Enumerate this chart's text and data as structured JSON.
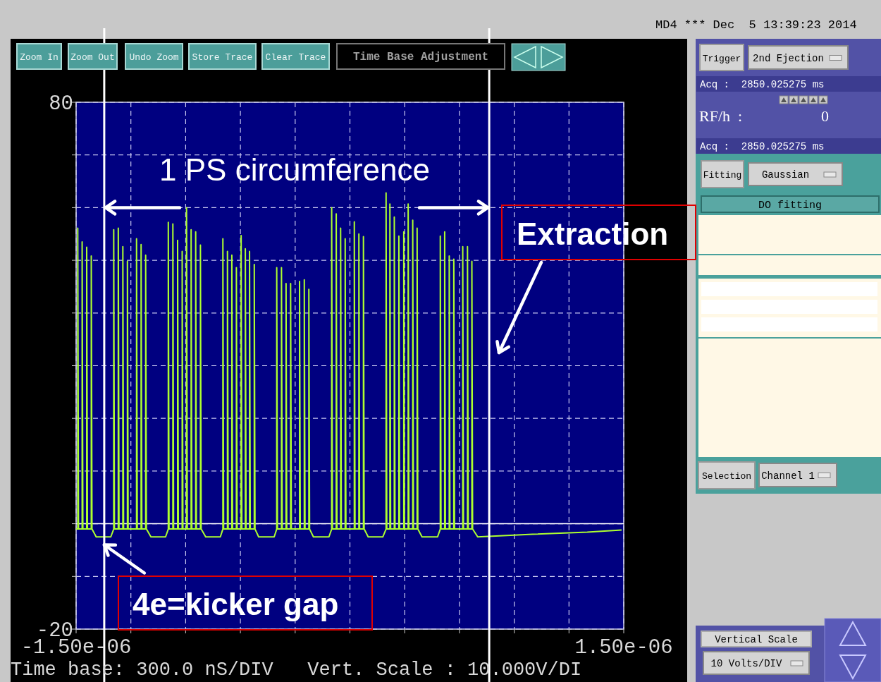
{
  "chart_data": [
    {
      "type": "line",
      "color": "#adff2f",
      "grid": true,
      "xlim": [
        -1.5e-06,
        1.5e-06
      ],
      "xticks": [
        {
          "value": -1.5e-06,
          "label": "-1.50e-06"
        },
        {
          "value": -1.2e-06,
          "label": null
        },
        {
          "value": -9e-07,
          "label": null
        },
        {
          "value": -6e-07,
          "label": null
        },
        {
          "value": -3e-07,
          "label": null
        },
        {
          "value": 0,
          "label": null
        },
        {
          "value": 3e-07,
          "label": null
        },
        {
          "value": 6e-07,
          "label": null
        },
        {
          "value": 9e-07,
          "label": null
        },
        {
          "value": 1.2e-06,
          "label": null
        },
        {
          "value": 1.5e-06,
          "label": "1.50e-06"
        }
      ],
      "ylim": [
        -20,
        80
      ],
      "yticks": [
        -20,
        {
          "value": -10,
          "label": null
        },
        {
          "value": 0,
          "label": null
        },
        {
          "value": 10,
          "label": null
        },
        {
          "value": 20,
          "label": null
        },
        {
          "value": 30,
          "label": null
        },
        {
          "value": 40,
          "label": null
        },
        {
          "value": 50,
          "label": null
        },
        {
          "value": 60,
          "label": null
        },
        {
          "value": 70,
          "label": null
        },
        80
      ],
      "x": [
        -1.5e-06,
        -1.491e-06,
        -1.491e-06,
        -1.487e-06,
        -1.467e-06,
        -1.467e-06,
        -1.463e-06,
        -1.442e-06,
        -1.442e-06,
        -1.438e-06,
        -1.417e-06,
        -1.417e-06,
        -1.413e-06,
        -1.39e-06,
        -1.31e-06,
        -1.294e-06,
        -1.294e-06,
        -1.29e-06,
        -1.269e-06,
        -1.269e-06,
        -1.265e-06,
        -1.244e-06,
        -1.244e-06,
        -1.24e-06,
        -1.219e-06,
        -1.219e-06,
        -1.215e-06,
        -1.169e-06,
        -1.169e-06,
        -1.165e-06,
        -1.144e-06,
        -1.144e-06,
        -1.14e-06,
        -1.119e-06,
        -1.119e-06,
        -1.115e-06,
        -1.09e-06,
        -1.01e-06,
        -9.95e-07,
        -9.95e-07,
        -9.91e-07,
        -9.7e-07,
        -9.7e-07,
        -9.66e-07,
        -9.44e-07,
        -9.44e-07,
        -9.4e-07,
        -9.19e-07,
        -9.19e-07,
        -9.15e-07,
        -8.95e-07,
        -8.95e-07,
        -8.91e-07,
        -8.7e-07,
        -8.7e-07,
        -8.66e-07,
        -8.45e-07,
        -8.45e-07,
        -8.41e-07,
        -8.19e-07,
        -8.19e-07,
        -8.15e-07,
        -7.9e-07,
        -7.1e-07,
        -6.96e-07,
        -6.96e-07,
        -6.92e-07,
        -6.71e-07,
        -6.71e-07,
        -6.67e-07,
        -6.47e-07,
        -6.47e-07,
        -6.43e-07,
        -6.22e-07,
        -6.22e-07,
        -6.18e-07,
        -5.96e-07,
        -5.96e-07,
        -5.92e-07,
        -5.73e-07,
        -5.73e-07,
        -5.69e-07,
        -5.5e-07,
        -5.5e-07,
        -5.46e-07,
        -5.24e-07,
        -5.24e-07,
        -5.2e-07,
        -5e-07,
        -4.15e-07,
        -4.01e-07,
        -4.01e-07,
        -3.97e-07,
        -3.75e-07,
        -3.75e-07,
        -3.71e-07,
        -3.5e-07,
        -3.5e-07,
        -3.46e-07,
        -3.25e-07,
        -3.25e-07,
        -3.21e-07,
        -2.76e-07,
        -2.76e-07,
        -2.72e-07,
        -2.5e-07,
        -2.5e-07,
        -2.46e-07,
        -2.25e-07,
        -2.25e-07,
        -2.21e-07,
        -2e-07,
        -1.15e-07,
        -1e-07,
        -1e-07,
        -9.6e-08,
        -7.5e-08,
        -7.5e-08,
        -7.1e-08,
        -5.1e-08,
        -5.1e-08,
        -4.7e-08,
        -2.6e-08,
        -2.6e-08,
        -2.2e-08,
        2.4e-08,
        2.4e-08,
        2.8e-08,
        4.9e-08,
        4.9e-08,
        5.3e-08,
        7.4e-08,
        7.4e-08,
        7.8e-08,
        1e-07,
        1.8e-07,
        1.98e-07,
        1.98e-07,
        2.02e-07,
        2.19e-07,
        2.19e-07,
        2.23e-07,
        2.43e-07,
        2.43e-07,
        2.47e-07,
        2.68e-07,
        2.68e-07,
        2.72e-07,
        2.95e-07,
        2.95e-07,
        2.99e-07,
        3.19e-07,
        3.19e-07,
        3.23e-07,
        3.44e-07,
        3.44e-07,
        3.48e-07,
        3.68e-07,
        3.68e-07,
        3.72e-07,
        3.95e-07,
        4.8e-07,
        4.95e-07,
        4.95e-07,
        4.99e-07,
        5.19e-07,
        5.19e-07,
        5.23e-07,
        5.44e-07,
        5.44e-07,
        5.48e-07,
        5.69e-07,
        5.69e-07,
        5.73e-07,
        6.18e-07,
        6.18e-07,
        6.22e-07,
        6.44e-07,
        6.44e-07,
        6.48e-07,
        6.68e-07,
        6.68e-07,
        6.72e-07,
        7e-07,
        1e-06,
        1.3e-06,
        1.488e-06
      ],
      "values": [
        -1,
        -1,
        56.1,
        -1,
        -1,
        53.5,
        -1,
        -1,
        52.5,
        -1,
        -1,
        50.8,
        -1,
        -2.5,
        -2.5,
        -1,
        55.8,
        -1,
        -1,
        56.1,
        -1,
        -1,
        52.6,
        -1,
        -1,
        49.8,
        -1,
        -1,
        54.1,
        -1,
        -1,
        53.0,
        -1,
        -1,
        51.0,
        -1,
        -2.5,
        -2.5,
        -1,
        57.2,
        -1,
        -1,
        56.9,
        -1,
        -1,
        53.8,
        -1,
        -1,
        51.7,
        -1,
        -1,
        60.0,
        -1,
        -1,
        55.8,
        -1,
        -1,
        55.4,
        -1,
        -1,
        52.9,
        -1,
        -2.5,
        -2.5,
        -1,
        54.1,
        -1,
        -1,
        51.7,
        -1,
        -1,
        51.0,
        -1,
        -1,
        48.6,
        -1,
        -1,
        54.7,
        -1,
        -1,
        52.2,
        -1,
        -1,
        51.7,
        -1,
        -1,
        49.2,
        -1,
        -2.5,
        -2.5,
        -1,
        48.6,
        -1,
        -1,
        48.6,
        -1,
        -1,
        45.6,
        -1,
        -1,
        45.6,
        -1,
        -1,
        46.0,
        -1,
        -1,
        46.3,
        -1,
        -1,
        44.5,
        -1,
        -2.5,
        -2.5,
        -1,
        60.0,
        -1,
        -1,
        58.8,
        -1,
        -1,
        56.1,
        -1,
        -1,
        54.1,
        -1,
        -1,
        57.3,
        -1,
        -1,
        55.0,
        -1,
        -1,
        54.5,
        -1,
        -2.5,
        -2.5,
        -1,
        62.8,
        -1,
        -1,
        60.7,
        -1,
        -1,
        58.2,
        -1,
        -1,
        54.6,
        -1,
        -1,
        55.4,
        -1,
        -1,
        60.7,
        -1,
        -1,
        57.6,
        -1,
        -1,
        56.1,
        -1,
        -2.5,
        -2.5,
        -1,
        54.6,
        -1,
        -1,
        55.4,
        -1,
        -1,
        50.8,
        -1,
        -1,
        50.2,
        -1,
        -1,
        52.6,
        -1,
        -1,
        52.6,
        -1,
        -1,
        49.8,
        -1,
        -2.5,
        -2.0,
        -1.6,
        -1.2
      ],
      "ref_lines": [
        {
          "axis": "x",
          "value": -1.346e-06,
          "color": "#ffffff"
        },
        {
          "axis": "x",
          "value": 7.63e-07,
          "color": "#ffffff"
        },
        {
          "axis": "y",
          "value": 0,
          "color": "#ffffff"
        }
      ],
      "annotations": [
        {
          "text": "1 PS circumference",
          "x": -1.346e-06,
          "y": 60
        },
        "Extraction",
        {
          "text": "4e=kicker gap",
          "x": -1.346e-06,
          "y": -4
        },
        "Time base: 300.0 nS/DIV   Vert. Scale : 10.000V/DI"
      ]
    },
    {
      "type": "other",
      "annotations": [
        "MD4 *** Dec  5 13:39:23 2014",
        "Zoom In",
        "Zoom Out",
        "Undo Zoom",
        "Store Trace",
        "Clear Trace",
        "Time Base Adjustment",
        "Trigger",
        "2nd Ejection",
        "Acq :  2850.025275 ms",
        "RF/h  :",
        "0",
        "Acq :  2850.025275 ms",
        "Fitting",
        "Gaussian",
        "DO fitting",
        "Selection",
        "Channel 1",
        "Vertical Scale",
        "10 Volts/DIV"
      ]
    }
  ]
}
